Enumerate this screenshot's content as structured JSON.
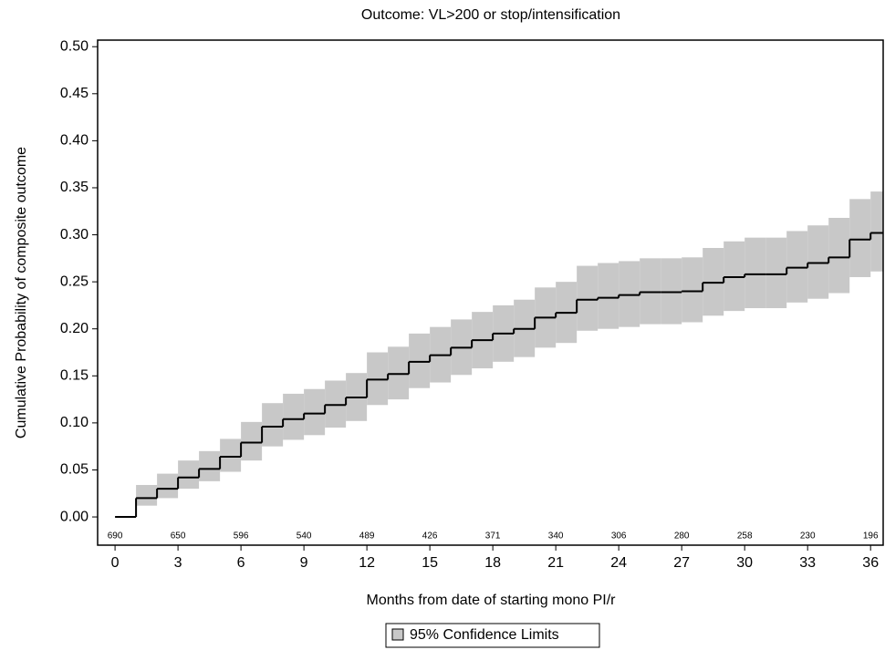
{
  "chart_data": {
    "type": "step",
    "title": "Outcome:  VL>200 or stop/intensification",
    "x_label": "Months from date of starting mono PI/r",
    "y_label": "Cumulative Probability of composite outcome",
    "x": [
      0,
      1,
      2,
      3,
      4,
      5,
      6,
      7,
      8,
      9,
      10,
      11,
      12,
      13,
      14,
      15,
      16,
      17,
      18,
      19,
      20,
      21,
      22,
      23,
      24,
      25,
      26,
      27,
      28,
      29,
      30,
      31,
      32,
      33,
      34,
      35,
      36
    ],
    "estimate": {
      "color": "#000000",
      "values": [
        0,
        0.02,
        0.03,
        0.042,
        0.051,
        0.064,
        0.079,
        0.096,
        0.104,
        0.11,
        0.119,
        0.127,
        0.146,
        0.152,
        0.165,
        0.172,
        0.18,
        0.188,
        0.195,
        0.2,
        0.212,
        0.217,
        0.231,
        0.233,
        0.236,
        0.239,
        0.239,
        0.24,
        0.249,
        0.255,
        0.258,
        0.258,
        0.265,
        0.27,
        0.276,
        0.295,
        0.302
      ]
    },
    "band": {
      "name": "95% Confidence Limits",
      "color": "#c8c8c8",
      "lower": [
        0,
        0.012,
        0.02,
        0.03,
        0.038,
        0.048,
        0.06,
        0.075,
        0.082,
        0.087,
        0.095,
        0.102,
        0.119,
        0.125,
        0.137,
        0.143,
        0.151,
        0.158,
        0.165,
        0.17,
        0.18,
        0.185,
        0.198,
        0.2,
        0.202,
        0.205,
        0.205,
        0.207,
        0.214,
        0.219,
        0.222,
        0.222,
        0.228,
        0.232,
        0.238,
        0.255,
        0.261
      ],
      "upper": [
        0,
        0.034,
        0.046,
        0.06,
        0.07,
        0.083,
        0.101,
        0.121,
        0.131,
        0.136,
        0.145,
        0.153,
        0.175,
        0.181,
        0.195,
        0.202,
        0.21,
        0.218,
        0.225,
        0.231,
        0.244,
        0.25,
        0.267,
        0.27,
        0.272,
        0.275,
        0.275,
        0.276,
        0.286,
        0.293,
        0.297,
        0.297,
        0.304,
        0.31,
        0.318,
        0.338,
        0.346
      ]
    },
    "at_risk": {
      "x": [
        0,
        3,
        6,
        9,
        12,
        15,
        18,
        21,
        24,
        27,
        30,
        33,
        36
      ],
      "values": [
        690,
        650,
        596,
        540,
        489,
        426,
        371,
        340,
        306,
        280,
        258,
        230,
        196
      ]
    },
    "xlim": [
      -0.83,
      36.6
    ],
    "ylim": [
      -0.03,
      0.507
    ],
    "xticks": [
      0,
      3,
      6,
      9,
      12,
      15,
      18,
      21,
      24,
      27,
      30,
      33,
      36
    ],
    "yticks": [
      {
        "value": 0,
        "label": "0.00"
      },
      {
        "value": 0.05,
        "label": "0.05"
      },
      {
        "value": 0.1,
        "label": "0.10"
      },
      {
        "value": 0.15,
        "label": "0.15"
      },
      {
        "value": 0.2,
        "label": "0.20"
      },
      {
        "value": 0.25,
        "label": "0.25"
      },
      {
        "value": 0.3,
        "label": "0.30"
      },
      {
        "value": 0.35,
        "label": "0.35"
      },
      {
        "value": 0.4,
        "label": "0.40"
      },
      {
        "value": 0.45,
        "label": "0.45"
      },
      {
        "value": 0.5,
        "label": "0.50"
      }
    ]
  }
}
